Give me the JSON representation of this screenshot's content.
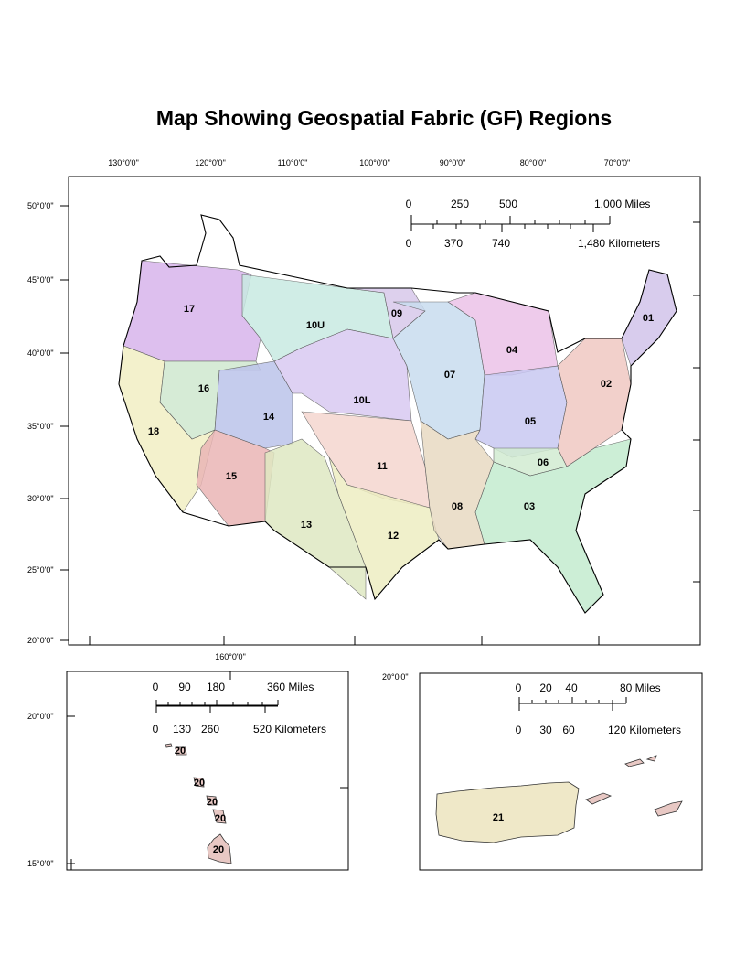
{
  "title": "Map Showing Geospatial Fabric (GF) Regions",
  "main_map": {
    "longitude_labels": [
      "130°0'0\"",
      "120°0'0\"",
      "110°0'0\"",
      "100°0'0\"",
      "90°0'0\"",
      "80°0'0\"",
      "70°0'0\""
    ],
    "latitude_labels": [
      "50°0'0\"",
      "45°0'0\"",
      "40°0'0\"",
      "35°0'0\"",
      "30°0'0\"",
      "25°0'0\"",
      "20°0'0\""
    ],
    "scale_bar": {
      "miles": [
        "0",
        "250",
        "500",
        "1,000 Miles"
      ],
      "kilometers": [
        "0",
        "370",
        "740",
        "1,480 Kilometers"
      ]
    },
    "regions": [
      {
        "id": "17",
        "color": "#d8b4ec"
      },
      {
        "id": "18",
        "color": "#f2efc4"
      },
      {
        "id": "16",
        "color": "#cfe8cf"
      },
      {
        "id": "14",
        "color": "#bcc4ea"
      },
      {
        "id": "15",
        "color": "#eab6b6"
      },
      {
        "id": "13",
        "color": "#dfe8c2"
      },
      {
        "id": "10U",
        "color": "#c8eae2"
      },
      {
        "id": "10L",
        "color": "#d9caf2"
      },
      {
        "id": "11",
        "color": "#f5d6d0"
      },
      {
        "id": "12",
        "color": "#eeeec2"
      },
      {
        "id": "09",
        "color": "#d8c8ea"
      },
      {
        "id": "07",
        "color": "#c8dcef"
      },
      {
        "id": "04",
        "color": "#ecc2e8"
      },
      {
        "id": "05",
        "color": "#c8c8f2"
      },
      {
        "id": "06",
        "color": "#d2ecd2"
      },
      {
        "id": "08",
        "color": "#e8dac2"
      },
      {
        "id": "03",
        "color": "#c4ecd0"
      },
      {
        "id": "02",
        "color": "#f0c8c2"
      },
      {
        "id": "01",
        "color": "#d2c4ea"
      }
    ]
  },
  "hawaii_inset": {
    "longitude_label": "160°0'0\"",
    "latitude_labels": [
      "20°0'0\"",
      "15°0'0\""
    ],
    "scale_bar": {
      "miles": [
        "0",
        "90",
        "180",
        "360 Miles"
      ],
      "kilometers": [
        "0",
        "130",
        "260",
        "520 Kilometers"
      ]
    },
    "region_labels": [
      "20",
      "20",
      "20",
      "20",
      "20"
    ],
    "color": "#e8c8c4"
  },
  "puerto_rico_inset": {
    "latitude_label": "20°0'0\"",
    "scale_bar": {
      "miles": [
        "0",
        "20",
        "40",
        "80 Miles"
      ],
      "kilometers": [
        "0",
        "30",
        "60",
        "120 Kilometers"
      ]
    },
    "region_label": "21",
    "color": "#efe8c8"
  }
}
